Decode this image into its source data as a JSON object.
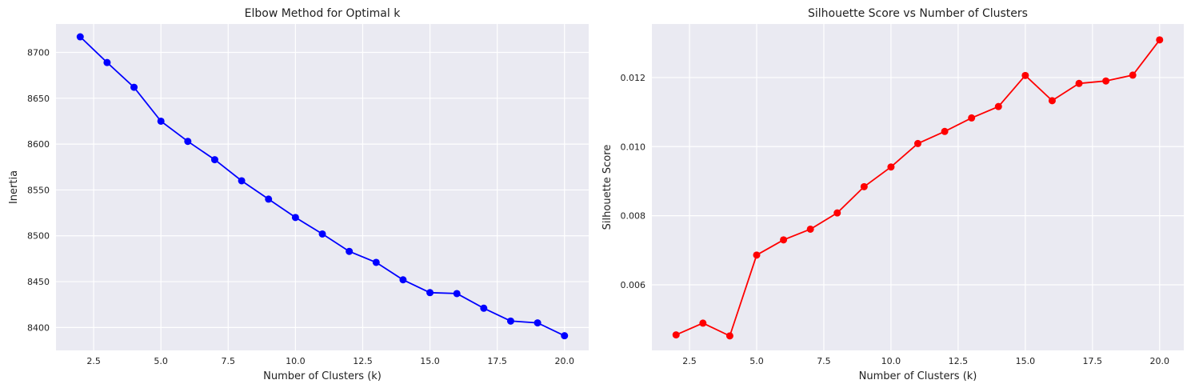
{
  "chart_data": [
    {
      "type": "line",
      "title": "Elbow Method for Optimal k",
      "xlabel": "Number of Clusters (k)",
      "ylabel": "Inertia",
      "xlim": [
        1.1,
        20.9
      ],
      "ylim": [
        8375,
        8731
      ],
      "xticks": [
        2.5,
        5.0,
        7.5,
        10.0,
        12.5,
        15.0,
        17.5,
        20.0
      ],
      "xtick_labels": [
        "2.5",
        "5.0",
        "7.5",
        "10.0",
        "12.5",
        "15.0",
        "17.5",
        "20.0"
      ],
      "yticks": [
        8400,
        8450,
        8500,
        8550,
        8600,
        8650,
        8700
      ],
      "ytick_labels": [
        "8400",
        "8450",
        "8500",
        "8550",
        "8600",
        "8650",
        "8700"
      ],
      "grid": true,
      "series": [
        {
          "color": "#0000ff",
          "marker": "circle",
          "x": [
            2,
            3,
            4,
            5,
            6,
            7,
            8,
            9,
            10,
            11,
            12,
            13,
            14,
            15,
            16,
            17,
            18,
            19,
            20
          ],
          "y": [
            8717,
            8689,
            8662,
            8625,
            8603,
            8583,
            8560,
            8540,
            8520,
            8502,
            8483,
            8471,
            8452,
            8438,
            8437,
            8421,
            8407,
            8405,
            8391
          ]
        }
      ]
    },
    {
      "type": "line",
      "title": "Silhouette Score vs Number of Clusters",
      "xlabel": "Number of Clusters (k)",
      "ylabel": "Silhouette Score",
      "xlim": [
        1.1,
        20.9
      ],
      "ylim": [
        0.0041,
        0.01355
      ],
      "xticks": [
        2.5,
        5.0,
        7.5,
        10.0,
        12.5,
        15.0,
        17.5,
        20.0
      ],
      "xtick_labels": [
        "2.5",
        "5.0",
        "7.5",
        "10.0",
        "12.5",
        "15.0",
        "17.5",
        "20.0"
      ],
      "yticks": [
        0.006,
        0.008,
        0.01,
        0.012
      ],
      "ytick_labels": [
        "0.006",
        "0.008",
        "0.010",
        "0.012"
      ],
      "grid": true,
      "series": [
        {
          "color": "#ff0000",
          "marker": "circle",
          "x": [
            2,
            3,
            4,
            5,
            6,
            7,
            8,
            9,
            10,
            11,
            12,
            13,
            14,
            15,
            16,
            17,
            18,
            19,
            20
          ],
          "y": [
            0.00455,
            0.00489,
            0.00452,
            0.00686,
            0.0073,
            0.00761,
            0.00808,
            0.00884,
            0.00941,
            0.01009,
            0.01044,
            0.01083,
            0.01116,
            0.01206,
            0.01133,
            0.01183,
            0.0119,
            0.01207,
            0.01309
          ]
        }
      ]
    }
  ]
}
